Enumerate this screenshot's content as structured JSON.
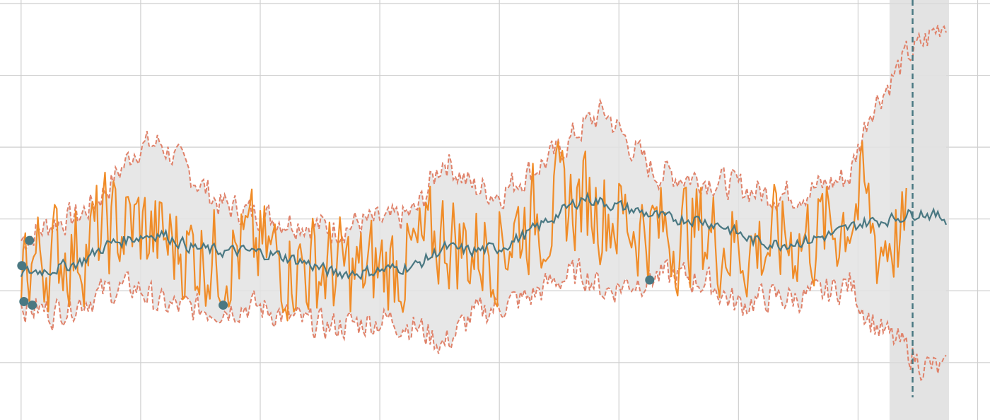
{
  "chart_data": {
    "type": "line",
    "title": "",
    "xlabel": "",
    "ylabel": "",
    "grid": true,
    "legend": "none",
    "xlim": [
      0,
      1340
    ],
    "ylim": [
      -55,
      60
    ],
    "x_gridlines": [
      15,
      186,
      357,
      528,
      699,
      870,
      1041,
      1212,
      1383
    ],
    "y_gridlines": [
      -40,
      -20,
      0,
      20,
      40,
      60
    ],
    "forecast_start": 1290,
    "forecast_shade": [
      1257,
      1342
    ],
    "series": [
      {
        "role": "trend",
        "color": "#4a7882",
        "points": [
          [
            15,
            -15
          ],
          [
            60,
            -14
          ],
          [
            100,
            -12
          ],
          [
            140,
            -7
          ],
          [
            180,
            -5
          ],
          [
            215,
            -4
          ],
          [
            260,
            -8
          ],
          [
            300,
            -9
          ],
          [
            340,
            -9
          ],
          [
            380,
            -10
          ],
          [
            420,
            -12
          ],
          [
            460,
            -15
          ],
          [
            500,
            -15
          ],
          [
            540,
            -14
          ],
          [
            580,
            -13
          ],
          [
            620,
            -8
          ],
          [
            660,
            -9
          ],
          [
            700,
            -8
          ],
          [
            740,
            -4
          ],
          [
            780,
            1
          ],
          [
            820,
            6
          ],
          [
            860,
            4
          ],
          [
            900,
            2
          ],
          [
            940,
            0
          ],
          [
            980,
            0
          ],
          [
            1020,
            -2
          ],
          [
            1060,
            -6
          ],
          [
            1100,
            -7
          ],
          [
            1140,
            -6
          ],
          [
            1180,
            -4
          ],
          [
            1220,
            -1
          ],
          [
            1260,
            0
          ],
          [
            1300,
            2
          ],
          [
            1340,
            0
          ]
        ]
      },
      {
        "role": "actual",
        "color": "#f08c28",
        "points": [
          [
            15,
            -12
          ],
          [
            60,
            -10
          ],
          [
            100,
            -8
          ],
          [
            140,
            -3
          ],
          [
            180,
            -2
          ],
          [
            215,
            -6
          ],
          [
            260,
            -9
          ],
          [
            300,
            -10
          ],
          [
            340,
            -8
          ],
          [
            380,
            -11
          ],
          [
            420,
            -13
          ],
          [
            460,
            -14
          ],
          [
            500,
            -16
          ],
          [
            540,
            -13
          ],
          [
            580,
            -11
          ],
          [
            620,
            -4
          ],
          [
            660,
            -9
          ],
          [
            700,
            -6
          ],
          [
            740,
            0
          ],
          [
            780,
            3
          ],
          [
            820,
            6
          ],
          [
            860,
            2
          ],
          [
            900,
            -2
          ],
          [
            940,
            -4
          ],
          [
            980,
            -3
          ],
          [
            1020,
            -6
          ],
          [
            1060,
            -8
          ],
          [
            1100,
            -6
          ],
          [
            1140,
            -5
          ],
          [
            1180,
            -2
          ],
          [
            1220,
            6
          ],
          [
            1240,
            -8
          ],
          [
            1260,
            -4
          ],
          [
            1283,
            -6
          ]
        ]
      },
      {
        "role": "upper",
        "color": "#e0826a",
        "points": [
          [
            15,
            -6
          ],
          [
            60,
            -1
          ],
          [
            100,
            1
          ],
          [
            140,
            9
          ],
          [
            180,
            20
          ],
          [
            215,
            21
          ],
          [
            260,
            12
          ],
          [
            300,
            4
          ],
          [
            340,
            2
          ],
          [
            380,
            0
          ],
          [
            420,
            -1
          ],
          [
            460,
            -3
          ],
          [
            500,
            -1
          ],
          [
            540,
            -1
          ],
          [
            580,
            2
          ],
          [
            620,
            17
          ],
          [
            660,
            9
          ],
          [
            700,
            7
          ],
          [
            740,
            13
          ],
          [
            780,
            18
          ],
          [
            820,
            26
          ],
          [
            850,
            30
          ],
          [
            880,
            22
          ],
          [
            920,
            13
          ],
          [
            960,
            12
          ],
          [
            1000,
            11
          ],
          [
            1040,
            9
          ],
          [
            1080,
            7
          ],
          [
            1120,
            7
          ],
          [
            1160,
            9
          ],
          [
            1200,
            12
          ],
          [
            1230,
            31
          ],
          [
            1250,
            36
          ],
          [
            1280,
            45
          ],
          [
            1300,
            48
          ],
          [
            1340,
            56
          ]
        ]
      },
      {
        "role": "lower",
        "color": "#e0826a",
        "points": [
          [
            15,
            -24
          ],
          [
            60,
            -26
          ],
          [
            100,
            -23
          ],
          [
            140,
            -20
          ],
          [
            180,
            -19
          ],
          [
            215,
            -24
          ],
          [
            260,
            -25
          ],
          [
            300,
            -25
          ],
          [
            340,
            -24
          ],
          [
            380,
            -26
          ],
          [
            420,
            -29
          ],
          [
            460,
            -30
          ],
          [
            500,
            -29
          ],
          [
            540,
            -28
          ],
          [
            580,
            -30
          ],
          [
            620,
            -35
          ],
          [
            660,
            -27
          ],
          [
            700,
            -24
          ],
          [
            740,
            -22
          ],
          [
            780,
            -17
          ],
          [
            820,
            -15
          ],
          [
            850,
            -20
          ],
          [
            880,
            -18
          ],
          [
            920,
            -16
          ],
          [
            960,
            -16
          ],
          [
            1000,
            -18
          ],
          [
            1040,
            -24
          ],
          [
            1080,
            -22
          ],
          [
            1120,
            -22
          ],
          [
            1160,
            -21
          ],
          [
            1200,
            -18
          ],
          [
            1230,
            -28
          ],
          [
            1250,
            -32
          ],
          [
            1280,
            -36
          ],
          [
            1300,
            -40
          ],
          [
            1340,
            -43
          ]
        ]
      }
    ],
    "markers": {
      "color": "#4a7882",
      "points": [
        [
          27,
          -6
        ],
        [
          16,
          -13
        ],
        [
          19,
          -23
        ],
        [
          31,
          -24
        ],
        [
          304,
          -24
        ],
        [
          914,
          -17
        ]
      ]
    }
  }
}
